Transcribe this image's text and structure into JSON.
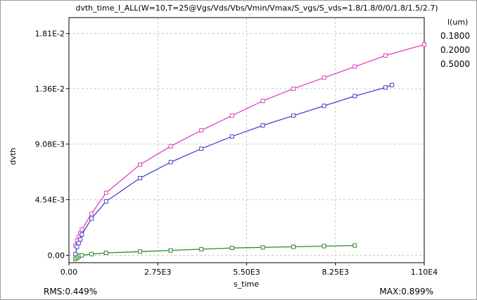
{
  "chart_data": {
    "type": "line",
    "title": "dvth_time_I_ALL(W=10,T=25@Vgs/Vds/Vbs/Vmin/Vmax/S_vgs/S_vds=1.8/1.8/0/0/1.8/1.5/2.7)",
    "xlabel": "s_time",
    "ylabel": "dvth",
    "xlim": [
      0,
      11000
    ],
    "ylim": [
      -0.0006,
      0.0194
    ],
    "x_ticks": [
      {
        "value": 0,
        "label": "0.00"
      },
      {
        "value": 2750,
        "label": "2.75E3"
      },
      {
        "value": 5500,
        "label": "5.50E3"
      },
      {
        "value": 8250,
        "label": "8.25E3"
      },
      {
        "value": 11000,
        "label": "1.10E4"
      }
    ],
    "y_ticks": [
      {
        "value": 0,
        "label": "0.00"
      },
      {
        "value": 0.00454,
        "label": "4.54E-3"
      },
      {
        "value": 0.00908,
        "label": "9.08E-3"
      },
      {
        "value": 0.0136,
        "label": "1.36E-2"
      },
      {
        "value": 0.0181,
        "label": "1.81E-2"
      }
    ],
    "grid": true,
    "legend_title": "l(um)",
    "legend_position": "top-right outside",
    "series": [
      {
        "name": "0.1800",
        "color": "#e040c0",
        "x": [
          200,
          250,
          300,
          350,
          400,
          700,
          1150,
          2200,
          3150,
          4100,
          5050,
          6000,
          6950,
          7900,
          8850,
          9800,
          11000
        ],
        "y": [
          0.0008,
          0.0012,
          0.0015,
          0.0018,
          0.0021,
          0.0034,
          0.0051,
          0.0074,
          0.0089,
          0.0102,
          0.0114,
          0.0126,
          0.0136,
          0.0145,
          0.0154,
          0.0163,
          0.0172
        ]
      },
      {
        "name": "0.2000",
        "color": "#4444cc",
        "x": [
          200,
          250,
          300,
          350,
          400,
          700,
          1150,
          2200,
          3150,
          4100,
          5050,
          6000,
          6950,
          7900,
          8850,
          9800,
          10000
        ],
        "y": [
          0.0001,
          0.0007,
          0.001,
          0.0013,
          0.0017,
          0.003,
          0.0044,
          0.0063,
          0.0076,
          0.0087,
          0.0097,
          0.0106,
          0.0114,
          0.0122,
          0.013,
          0.0137,
          0.0139
        ]
      },
      {
        "name": "0.5000",
        "color": "#2a8a2a",
        "x": [
          200,
          250,
          300,
          350,
          400,
          700,
          1150,
          2200,
          3150,
          4100,
          5050,
          6000,
          6950,
          7900,
          8850
        ],
        "y": [
          -0.0003,
          -0.0002,
          -0.0001,
          0.0,
          0.0,
          0.0001,
          0.0002,
          0.0003,
          0.0004,
          0.0005,
          0.0006,
          0.00065,
          0.0007,
          0.00075,
          0.0008
        ]
      }
    ]
  },
  "footer": {
    "rms": "RMS:0.449%",
    "max": "MAX:0.899%"
  }
}
